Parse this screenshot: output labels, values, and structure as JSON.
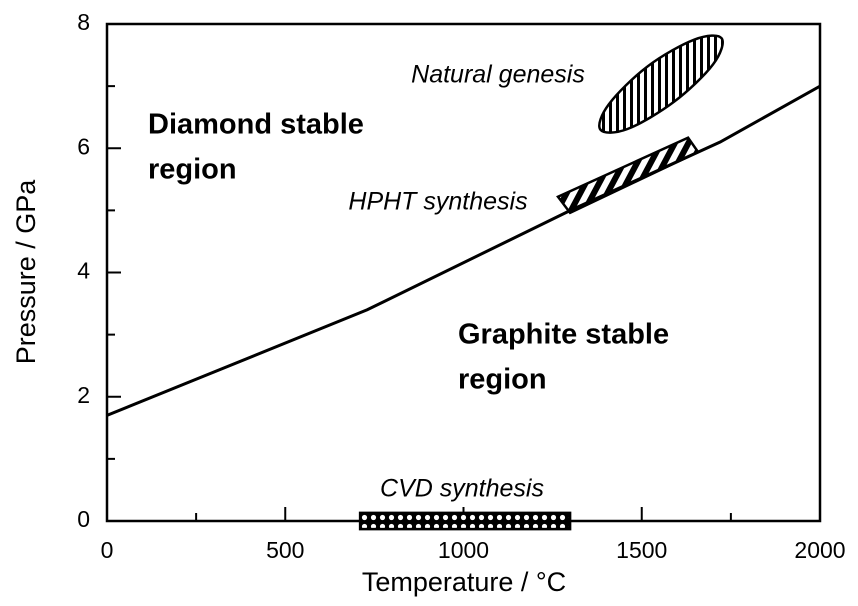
{
  "chart_data": {
    "type": "line",
    "xlabel": "Temperature / °C",
    "ylabel": "Pressure / GPa",
    "xlim": [
      0,
      2000
    ],
    "ylim": [
      0,
      8
    ],
    "xticks": [
      0,
      500,
      1000,
      1500,
      2000
    ],
    "yticks": [
      0,
      2,
      4,
      6,
      8
    ],
    "x_minor_ticks": [
      250,
      750,
      1250,
      1750
    ],
    "y_minor_ticks": [
      1,
      3,
      5,
      7
    ],
    "color": "#000000",
    "x": [
      0,
      730,
      1300,
      1720,
      2000
    ],
    "values": [
      1.7,
      3.4,
      5.0,
      6.1,
      7.0
    ],
    "region_labels": [
      {
        "lines": [
          "Diamond stable",
          "region"
        ]
      },
      {
        "lines": [
          "Graphite stable",
          "region"
        ]
      }
    ],
    "regions": [
      {
        "name": "Natural genesis",
        "x": [
          1724,
          1700,
          1591,
          1460,
          1384,
          1408,
          1517,
          1648
        ],
        "y": [
          7.77,
          7.35,
          6.75,
          6.31,
          6.3,
          6.71,
          7.32,
          7.75
        ]
      },
      {
        "name": "HPHT synthesis",
        "x": [
          1265,
          1299,
          1658,
          1630
        ],
        "y": [
          5.22,
          4.96,
          5.94,
          6.17
        ]
      },
      {
        "name": "CVD synthesis",
        "x": [
          710,
          1299,
          1299,
          710
        ],
        "y": [
          -0.13,
          -0.13,
          0.13,
          0.13
        ]
      }
    ]
  }
}
